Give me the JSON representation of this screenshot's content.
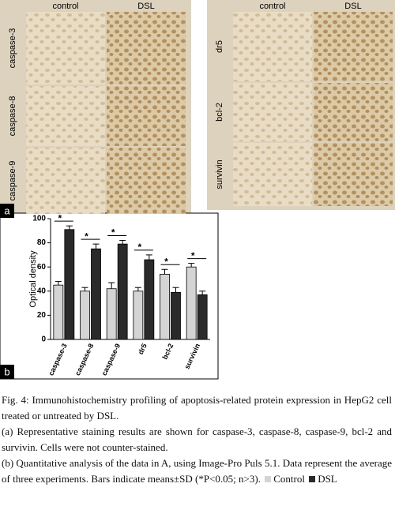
{
  "panel_a": {
    "label": "a",
    "left": {
      "columns": [
        "control",
        "DSL"
      ],
      "rows": [
        "caspase-3",
        "caspase-8",
        "caspase-9"
      ]
    },
    "right": {
      "columns": [
        "control",
        "DSL"
      ],
      "rows": [
        "dr5",
        "bcl-2",
        "survivin"
      ]
    }
  },
  "chart_data": {
    "type": "bar",
    "label": "b",
    "y_label": "Optical density",
    "categories": [
      "caspase-3",
      "caspase-8",
      "caspase-9",
      "dr5",
      "bcl-2",
      "survivin"
    ],
    "series": [
      {
        "name": "Control",
        "color": "#d4d4d4",
        "values": [
          45,
          40,
          42,
          40,
          54,
          60
        ],
        "errors": [
          3,
          3,
          5,
          3,
          4,
          3
        ]
      },
      {
        "name": "DSL",
        "color": "#2a2a2a",
        "values": [
          91,
          75,
          79,
          66,
          39,
          37
        ],
        "errors": [
          3,
          4,
          3,
          4,
          4,
          3
        ]
      }
    ],
    "annotations": [
      "*",
      "*",
      "*",
      "*",
      "*",
      "*"
    ],
    "ylim": [
      0,
      100
    ],
    "yticks": [
      0,
      20,
      40,
      60,
      80,
      100
    ]
  },
  "caption": {
    "title": "Fig. 4: Immunohistochemistry profiling of apoptosis-related protein expression in HepG2 cell treated or untreated by DSL.",
    "a": "(a) Representative staining results are shown for caspase-3, caspase-8, caspase-9, bcl-2 and survivin. Cells were not counter-stained.",
    "b": "(b) Quantitative analysis of the data in A, using Image-Pro Puls 5.1. Data represent the average of three experiments. Bars indicate means±SD (*P<0.05; n>3)."
  }
}
